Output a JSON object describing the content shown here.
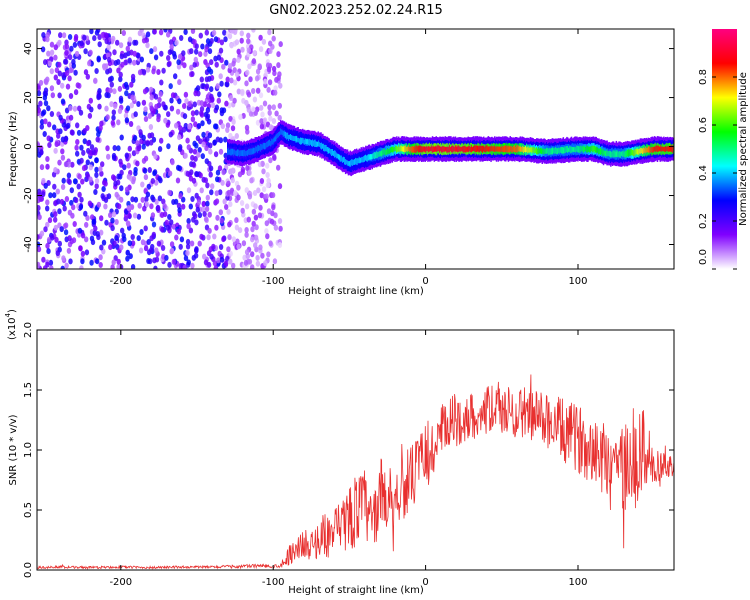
{
  "title": "GN02.2023.252.02.24.R15",
  "chart_data": [
    {
      "type": "heatmap",
      "xlabel": "Height of straight line (km)",
      "ylabel": "Frequency (Hz)",
      "xlim": [
        -255,
        163
      ],
      "ylim": [
        -50,
        48
      ],
      "x_ticks": [
        -200,
        -100,
        0,
        100
      ],
      "y_ticks": [
        -40,
        -20,
        0,
        20,
        40
      ],
      "colorbar": {
        "label": "Normalized spectral amplitude",
        "range": [
          0,
          1
        ],
        "ticks": [
          0.0,
          0.2,
          0.4,
          0.6,
          0.8
        ],
        "tick_labels": [
          "0.0",
          "0.2",
          "0.4",
          "0.6",
          "0.8"
        ],
        "colors": [
          "#ffffff",
          "#8000ff",
          "#0000ff",
          "#00ffff",
          "#00ff00",
          "#ffff00",
          "#ff0000",
          "#ff0080"
        ]
      },
      "noise_region": {
        "x_range": [
          -255,
          -95
        ],
        "amplitude": 0.25
      },
      "ridge": {
        "x": [
          -130,
          -120,
          -110,
          -100,
          -95,
          -90,
          -80,
          -70,
          -60,
          -50,
          -40,
          -30,
          -20,
          -10,
          0,
          20,
          40,
          60,
          80,
          100,
          110,
          120,
          130,
          140,
          150,
          163
        ],
        "y": [
          -2,
          -3,
          -1,
          2,
          6,
          4,
          2,
          1,
          -3,
          -7,
          -5,
          -3,
          -1,
          -1,
          -1,
          -1,
          -1,
          -1,
          -2,
          -1,
          -1,
          -3,
          -3,
          -2,
          -1,
          -1
        ],
        "amplitude": [
          0.35,
          0.35,
          0.35,
          0.35,
          0.35,
          0.4,
          0.4,
          0.4,
          0.4,
          0.4,
          0.4,
          0.5,
          0.6,
          0.8,
          0.9,
          0.9,
          0.85,
          0.8,
          0.5,
          0.5,
          0.6,
          0.5,
          0.5,
          0.7,
          0.85,
          0.85
        ]
      }
    },
    {
      "type": "line",
      "xlabel": "Height of straight line (km)",
      "ylabel": "SNR (10 * v/v)",
      "y_multiplier": "(x10",
      "y_multiplier_exp": "4",
      "xlim": [
        -255,
        163
      ],
      "ylim": [
        0,
        20000
      ],
      "x_ticks": [
        -200,
        -100,
        0,
        100
      ],
      "y_ticks": [
        0,
        5000,
        10000,
        15000,
        20000
      ],
      "y_tick_labels": [
        "0.0",
        "0.5",
        "1.0",
        "1.5",
        "2.0"
      ],
      "color": "#e8302f",
      "series": [
        {
          "x": [
            -255,
            -240,
            -220,
            -200,
            -180,
            -160,
            -140,
            -120,
            -110,
            -100,
            -95,
            -90,
            -85,
            -80,
            -75,
            -70,
            -65,
            -60,
            -55,
            -50,
            -45,
            -40,
            -35,
            -30,
            -25,
            -20,
            -15,
            -10,
            -5,
            0,
            5,
            10,
            15,
            20,
            25,
            30,
            35,
            40,
            45,
            50,
            55,
            60,
            65,
            70,
            75,
            80,
            85,
            90,
            95,
            100,
            105,
            110,
            115,
            120,
            125,
            130,
            135,
            140,
            145,
            150,
            155,
            160,
            163
          ],
          "y": [
            200,
            250,
            200,
            250,
            200,
            250,
            250,
            300,
            350,
            300,
            400,
            1200,
            1800,
            2200,
            2000,
            2600,
            3000,
            2900,
            3500,
            4500,
            5000,
            5500,
            3500,
            6500,
            6000,
            6000,
            7000,
            7500,
            8500,
            9500,
            10000,
            11000,
            12000,
            12500,
            12500,
            12800,
            13000,
            13300,
            13500,
            13200,
            13300,
            13000,
            13200,
            12900,
            12800,
            12500,
            12000,
            11500,
            11200,
            11000,
            10500,
            10500,
            9500,
            9500,
            9000,
            8500,
            8500,
            9500,
            10000,
            8000,
            8500,
            8800,
            8600
          ],
          "noise": [
            100,
            100,
            100,
            100,
            100,
            100,
            100,
            150,
            150,
            150,
            200,
            800,
            1000,
            1200,
            1200,
            1600,
            2000,
            2200,
            2400,
            2800,
            3200,
            3000,
            2500,
            3000,
            2800,
            2800,
            2800,
            2800,
            2800,
            2800,
            2800,
            2800,
            2600,
            2200,
            2000,
            2000,
            2000,
            2000,
            2000,
            2000,
            2000,
            2200,
            2200,
            2200,
            2200,
            2400,
            2600,
            2800,
            2800,
            2800,
            3000,
            3000,
            3200,
            3400,
            3800,
            4200,
            4200,
            3800,
            3600,
            2400,
            1200,
            1000,
            800
          ]
        }
      ]
    }
  ]
}
